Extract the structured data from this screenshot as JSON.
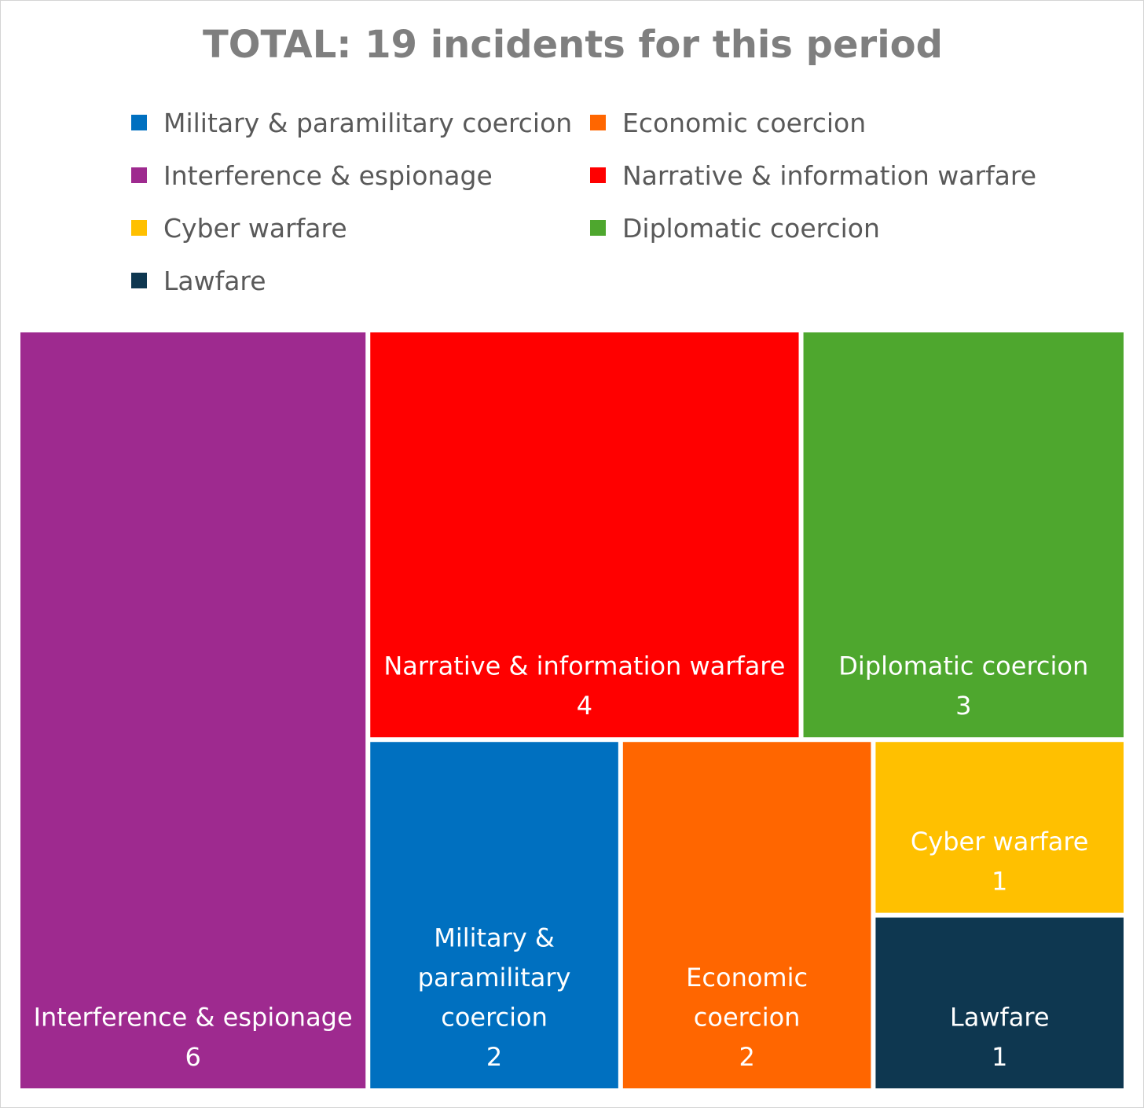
{
  "chart_data": {
    "type": "treemap",
    "title": "TOTAL: 19 incidents for this period",
    "legend_position": "top",
    "categories": [
      {
        "name": "Military & paramilitary coercion",
        "value": 2,
        "color": "#0070C0",
        "tile_label": [
          "Military &",
          "paramilitary",
          "coercion"
        ]
      },
      {
        "name": "Economic coercion",
        "value": 2,
        "color": "#FF6600",
        "tile_label": [
          "Economic",
          "coercion"
        ]
      },
      {
        "name": "Interference & espionage",
        "value": 6,
        "color": "#9E2A8F",
        "tile_label": [
          "Interference & espionage"
        ]
      },
      {
        "name": "Narrative & information warfare",
        "value": 4,
        "color": "#FF0000",
        "tile_label": [
          "Narrative & information warfare"
        ]
      },
      {
        "name": "Cyber warfare",
        "value": 1,
        "color": "#FFC000",
        "tile_label": [
          "Cyber warfare"
        ]
      },
      {
        "name": "Diplomatic coercion",
        "value": 3,
        "color": "#4EA72E",
        "tile_label": [
          "Diplomatic coercion"
        ]
      },
      {
        "name": "Lawfare",
        "value": 1,
        "color": "#0E3750",
        "tile_label": [
          "Lawfare"
        ]
      }
    ]
  }
}
